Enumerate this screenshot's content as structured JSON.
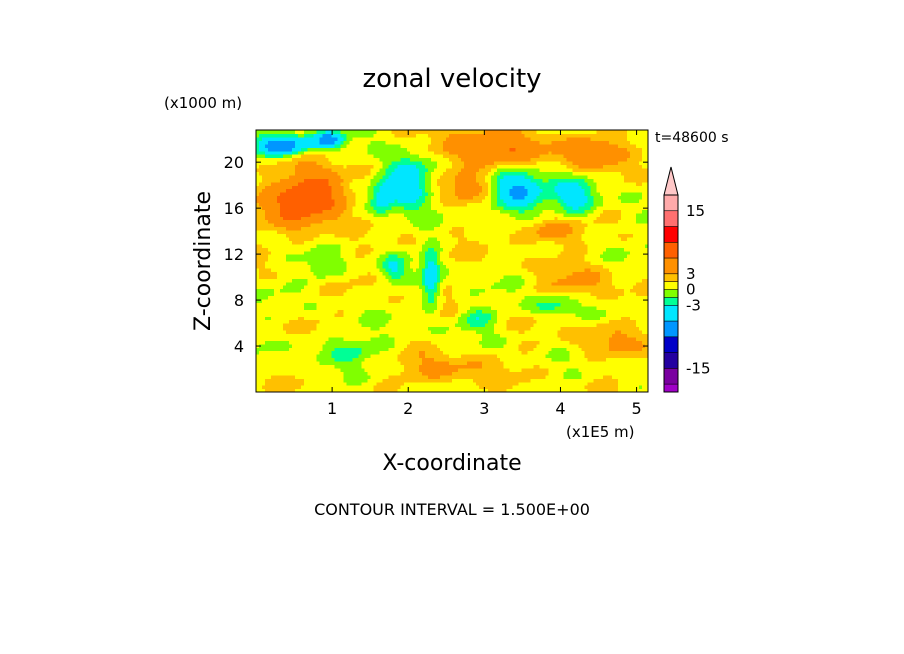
{
  "chart_data": {
    "type": "heatmap",
    "title": "zonal velocity",
    "xlabel": "X-coordinate",
    "ylabel": "Z-coordinate",
    "x_units": "(x1E5 m)",
    "z_units": "(x1000 m)",
    "time_label": "t=48600 s",
    "footer": "CONTOUR INTERVAL = 1.500E+00",
    "xlim": [
      0,
      5.15
    ],
    "zlim": [
      0,
      22.8
    ],
    "x_ticks": [
      {
        "value": 1,
        "label": "1"
      },
      {
        "value": 2,
        "label": "2"
      },
      {
        "value": 3,
        "label": "3"
      },
      {
        "value": 4,
        "label": "4"
      },
      {
        "value": 5,
        "label": "5"
      }
    ],
    "z_ticks": [
      {
        "value": 4,
        "label": "4"
      },
      {
        "value": 8,
        "label": "8"
      },
      {
        "value": 12,
        "label": "12"
      },
      {
        "value": 16,
        "label": "16"
      },
      {
        "value": 20,
        "label": "20"
      }
    ],
    "levels": [
      -19.5,
      -18,
      -15,
      -12,
      -9,
      -6,
      -3,
      -1.5,
      0,
      1.5,
      3,
      6,
      9,
      12,
      15,
      18
    ],
    "colors": [
      "#ff00c8",
      "#a000c8",
      "#7a00a0",
      "#2400a0",
      "#0000c8",
      "#0096ff",
      "#00e6ff",
      "#00ff96",
      "#80ff00",
      "#ffff00",
      "#ffc000",
      "#ff9000",
      "#ff6000",
      "#ff0000",
      "#ff7070",
      "#ffaaaa",
      "#ffc8c8"
    ],
    "colorbar_ticks": [
      {
        "value": 15,
        "label": "15"
      },
      {
        "value": 3,
        "label": "3"
      },
      {
        "value": 0,
        "label": "0"
      },
      {
        "value": -3,
        "label": "-3"
      },
      {
        "value": -15,
        "label": "-15"
      }
    ],
    "field_features": [
      {
        "x": 0.55,
        "z": 16.5,
        "amp": 5.5,
        "sx": 0.45,
        "sz": 2.5
      },
      {
        "x": 0.9,
        "z": 17.5,
        "amp": 4.5,
        "sx": 0.35,
        "sz": 2
      },
      {
        "x": 0.35,
        "z": 21.5,
        "amp": -10,
        "sx": 0.35,
        "sz": 0.9
      },
      {
        "x": 0.95,
        "z": 22,
        "amp": -8,
        "sx": 0.2,
        "sz": 0.7
      },
      {
        "x": 3.05,
        "z": 21.2,
        "amp": 5,
        "sx": 0.7,
        "sz": 1.6
      },
      {
        "x": 4.4,
        "z": 21,
        "amp": 5,
        "sx": 0.4,
        "sz": 1.4
      },
      {
        "x": 2.0,
        "z": 18.5,
        "amp": -7,
        "sx": 0.3,
        "sz": 2.2
      },
      {
        "x": 1.65,
        "z": 17,
        "amp": -5,
        "sx": 0.15,
        "sz": 1.5
      },
      {
        "x": 3.4,
        "z": 17.5,
        "amp": -8,
        "sx": 0.35,
        "sz": 1.8
      },
      {
        "x": 4.2,
        "z": 17,
        "amp": -5,
        "sx": 0.3,
        "sz": 1.7
      },
      {
        "x": 2.75,
        "z": 18,
        "amp": 3.5,
        "sx": 0.4,
        "sz": 1.5
      },
      {
        "x": 3.8,
        "z": 14,
        "amp": 3.5,
        "sx": 0.4,
        "sz": 1.2
      },
      {
        "x": 0.9,
        "z": 11,
        "amp": -3,
        "sx": 0.25,
        "sz": 1.2
      },
      {
        "x": 2.3,
        "z": 10,
        "amp": -6,
        "sx": 0.12,
        "sz": 2.5
      },
      {
        "x": 1.8,
        "z": 10.8,
        "amp": -3.5,
        "sx": 0.15,
        "sz": 1
      },
      {
        "x": 3.9,
        "z": 7.5,
        "amp": -3.5,
        "sx": 0.3,
        "sz": 0.9
      },
      {
        "x": 2.9,
        "z": 6.5,
        "amp": -3,
        "sx": 0.25,
        "sz": 1
      },
      {
        "x": 1.2,
        "z": 3.8,
        "amp": -2.5,
        "sx": 0.6,
        "sz": 1.2
      },
      {
        "x": 4.6,
        "z": 4.5,
        "amp": 2.5,
        "sx": 0.4,
        "sz": 1.5
      },
      {
        "x": 2.5,
        "z": 2,
        "amp": 2.5,
        "sx": 0.6,
        "sz": 1.5
      },
      {
        "x": 4.3,
        "z": 9.5,
        "amp": 2,
        "sx": 0.5,
        "sz": 1.5
      }
    ]
  }
}
